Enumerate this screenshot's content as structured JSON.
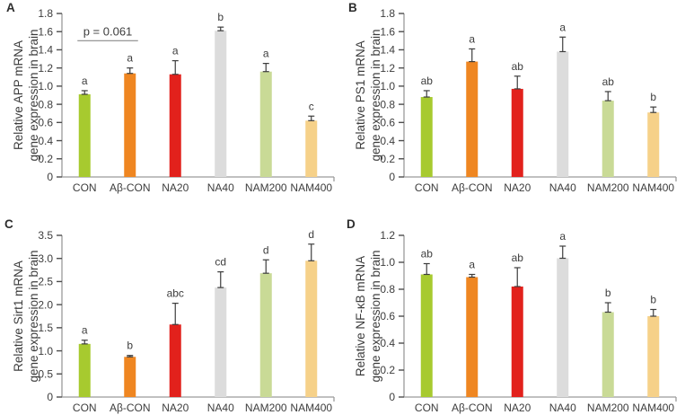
{
  "figure": {
    "background": "#ffffff",
    "axis_color": "#9a9a9a",
    "tick_color": "#4d4d4d",
    "text_color": "#3d3d3d",
    "error_bar_color": "#3d3d3d",
    "bar_colors": [
      "#a7ca2f",
      "#ef8621",
      "#e2211c",
      "#dcdcdc",
      "#c9da96",
      "#f6d189"
    ],
    "categories": [
      "CON",
      "Aβ-CON",
      "NA20",
      "NA40",
      "NAM200",
      "NAM400"
    ]
  },
  "chart_data": [
    {
      "type": "bar",
      "panel_label": "A",
      "ylabel_line1": "Relative APP mRNA",
      "ylabel_line2": "gene expression in brain",
      "categories": [
        "CON",
        "Aβ-CON",
        "NA20",
        "NA40",
        "NAM200",
        "NAM400"
      ],
      "values": [
        0.91,
        1.14,
        1.13,
        1.61,
        1.16,
        0.62
      ],
      "errors": [
        0.04,
        0.06,
        0.15,
        0.04,
        0.09,
        0.05
      ],
      "sig_letters": [
        "a",
        "a",
        "a",
        "b",
        "a",
        "c"
      ],
      "ylim": [
        0,
        1.8
      ],
      "ytick_step": 0.2,
      "annotation": {
        "text": "p = 0.061",
        "from": 0,
        "to": 1,
        "line_y": 1.5
      }
    },
    {
      "type": "bar",
      "panel_label": "B",
      "ylabel_line1": "Relative PS1 mRNA",
      "ylabel_line2": "gene expression in brain",
      "categories": [
        "CON",
        "Aβ-CON",
        "NA20",
        "NA40",
        "NAM200",
        "NAM400"
      ],
      "values": [
        0.88,
        1.27,
        0.97,
        1.38,
        0.84,
        0.71
      ],
      "errors": [
        0.07,
        0.14,
        0.14,
        0.16,
        0.1,
        0.06
      ],
      "sig_letters": [
        "ab",
        "a",
        "ab",
        "a",
        "ab",
        "b"
      ],
      "ylim": [
        0,
        1.8
      ],
      "ytick_step": 0.2
    },
    {
      "type": "bar",
      "panel_label": "C",
      "ylabel_line1": "Relative Sirt1 mRNA",
      "ylabel_line2": "gene expression in brain",
      "categories": [
        "CON",
        "Aβ-CON",
        "NA20",
        "NA40",
        "NAM200",
        "NAM400"
      ],
      "values": [
        1.15,
        0.87,
        1.57,
        2.37,
        2.68,
        2.95
      ],
      "errors": [
        0.08,
        0.03,
        0.46,
        0.34,
        0.29,
        0.36
      ],
      "sig_letters": [
        "a",
        "b",
        "abc",
        "cd",
        "d",
        "d"
      ],
      "ylim": [
        0,
        3.5
      ],
      "ytick_step": 0.5
    },
    {
      "type": "bar",
      "panel_label": "D",
      "ylabel_line1": "Relative NF-κB mRNA",
      "ylabel_line2": "gene expression in brain",
      "categories": [
        "CON",
        "Aβ-CON",
        "NA20",
        "NA40",
        "NAM200",
        "NAM400"
      ],
      "values": [
        0.91,
        0.89,
        0.82,
        1.03,
        0.63,
        0.6
      ],
      "errors": [
        0.08,
        0.02,
        0.14,
        0.09,
        0.07,
        0.05
      ],
      "sig_letters": [
        "ab",
        "a",
        "ab",
        "a",
        "b",
        "b"
      ],
      "ylim": [
        0,
        1.2
      ],
      "ytick_step": 0.2
    }
  ]
}
